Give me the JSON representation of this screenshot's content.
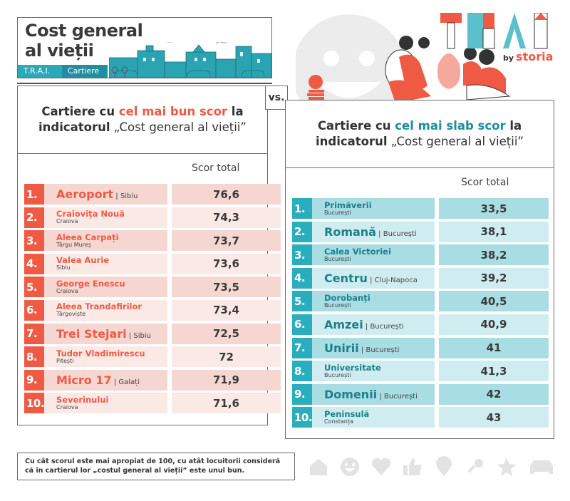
{
  "header": {
    "title_line1": "Cost general",
    "title_line2": "al vieții",
    "tag_trai": "T.R.A.I.",
    "tag_cartiere": "Cartiere"
  },
  "branding": {
    "logo": "TRAI",
    "by": "by",
    "brand": "storia"
  },
  "vs_label": "vs.",
  "colors": {
    "best_accent": "#ef5a45",
    "worst_accent": "#2aaebd",
    "teal_text": "#1d7f8c"
  },
  "best": {
    "title_prefix": "Cartiere cu ",
    "title_highlight": "cel mai bun scor",
    "title_suffix": " la",
    "title_line2_bold": "indicatorul",
    "title_line2_rest": " „Cost general al vieții”",
    "score_header": "Scor total",
    "rows": [
      {
        "rank": "1.",
        "name": "Aeroport",
        "city": "Sibiu",
        "inline": true,
        "score": "76,6"
      },
      {
        "rank": "2.",
        "name": "Craiovița Nouă",
        "city": "Craiova",
        "inline": false,
        "score": "74,3"
      },
      {
        "rank": "3.",
        "name": "Aleea Carpați",
        "city": "Târgu Mureș",
        "inline": false,
        "score": "73,7"
      },
      {
        "rank": "4.",
        "name": "Valea Aurie",
        "city": "Sibiu",
        "inline": false,
        "score": "73,6"
      },
      {
        "rank": "5.",
        "name": "George Enescu",
        "city": "Craiova",
        "inline": false,
        "score": "73,5"
      },
      {
        "rank": "6.",
        "name": "Aleea Trandafirilor",
        "city": "Târgoviște",
        "inline": false,
        "score": "73,4"
      },
      {
        "rank": "7.",
        "name": "Trei Stejari",
        "city": "Sibiu",
        "inline": true,
        "score": "72,5"
      },
      {
        "rank": "8.",
        "name": "Tudor Vladimirescu",
        "city": "Pitești",
        "inline": false,
        "score": "72"
      },
      {
        "rank": "9.",
        "name": "Micro 17",
        "city": "Galați",
        "inline": true,
        "score": "71,9"
      },
      {
        "rank": "10.",
        "name": "Severinului",
        "city": "Craiova",
        "inline": false,
        "score": "71,6"
      }
    ]
  },
  "worst": {
    "title_prefix": "Cartiere cu ",
    "title_highlight": "cel mai slab scor",
    "title_suffix": " la",
    "title_line2_bold": "indicatorul",
    "title_line2_rest": " „Cost general al vieții”",
    "score_header": "Scor total",
    "rows": [
      {
        "rank": "1.",
        "name": "Primăverii",
        "city": "București",
        "inline": false,
        "score": "33,5"
      },
      {
        "rank": "2.",
        "name": "Romană",
        "city": "București",
        "inline": true,
        "score": "38,1"
      },
      {
        "rank": "3.",
        "name": "Calea Victoriei",
        "city": "București",
        "inline": false,
        "score": "38,2"
      },
      {
        "rank": "4.",
        "name": "Centru",
        "city": "Cluj-Napoca",
        "inline": true,
        "score": "39,2"
      },
      {
        "rank": "5.",
        "name": "Dorobanți",
        "city": "București",
        "inline": false,
        "score": "40,5"
      },
      {
        "rank": "6.",
        "name": "Amzei",
        "city": "București",
        "inline": true,
        "score": "40,9"
      },
      {
        "rank": "7.",
        "name": "Unirii",
        "city": "București",
        "inline": true,
        "score": "41"
      },
      {
        "rank": "8.",
        "name": "Universitate",
        "city": "București",
        "inline": false,
        "score": "41,3"
      },
      {
        "rank": "9.",
        "name": "Domenii",
        "city": "București",
        "inline": true,
        "score": "42"
      },
      {
        "rank": "10.",
        "name": "Peninsulă",
        "city": "Constanța",
        "inline": false,
        "score": "43"
      }
    ]
  },
  "note": "Cu cât scorul este mai apropiat de 100, cu atât locuitorii consideră că în cartierul lor „costul general al vieții” este unul bun.",
  "footer_icons": [
    "home-icon",
    "smiley-icon",
    "heart-icon",
    "thumbs-up-icon",
    "location-pin-icon",
    "key-icon",
    "star-icon",
    "car-icon"
  ]
}
